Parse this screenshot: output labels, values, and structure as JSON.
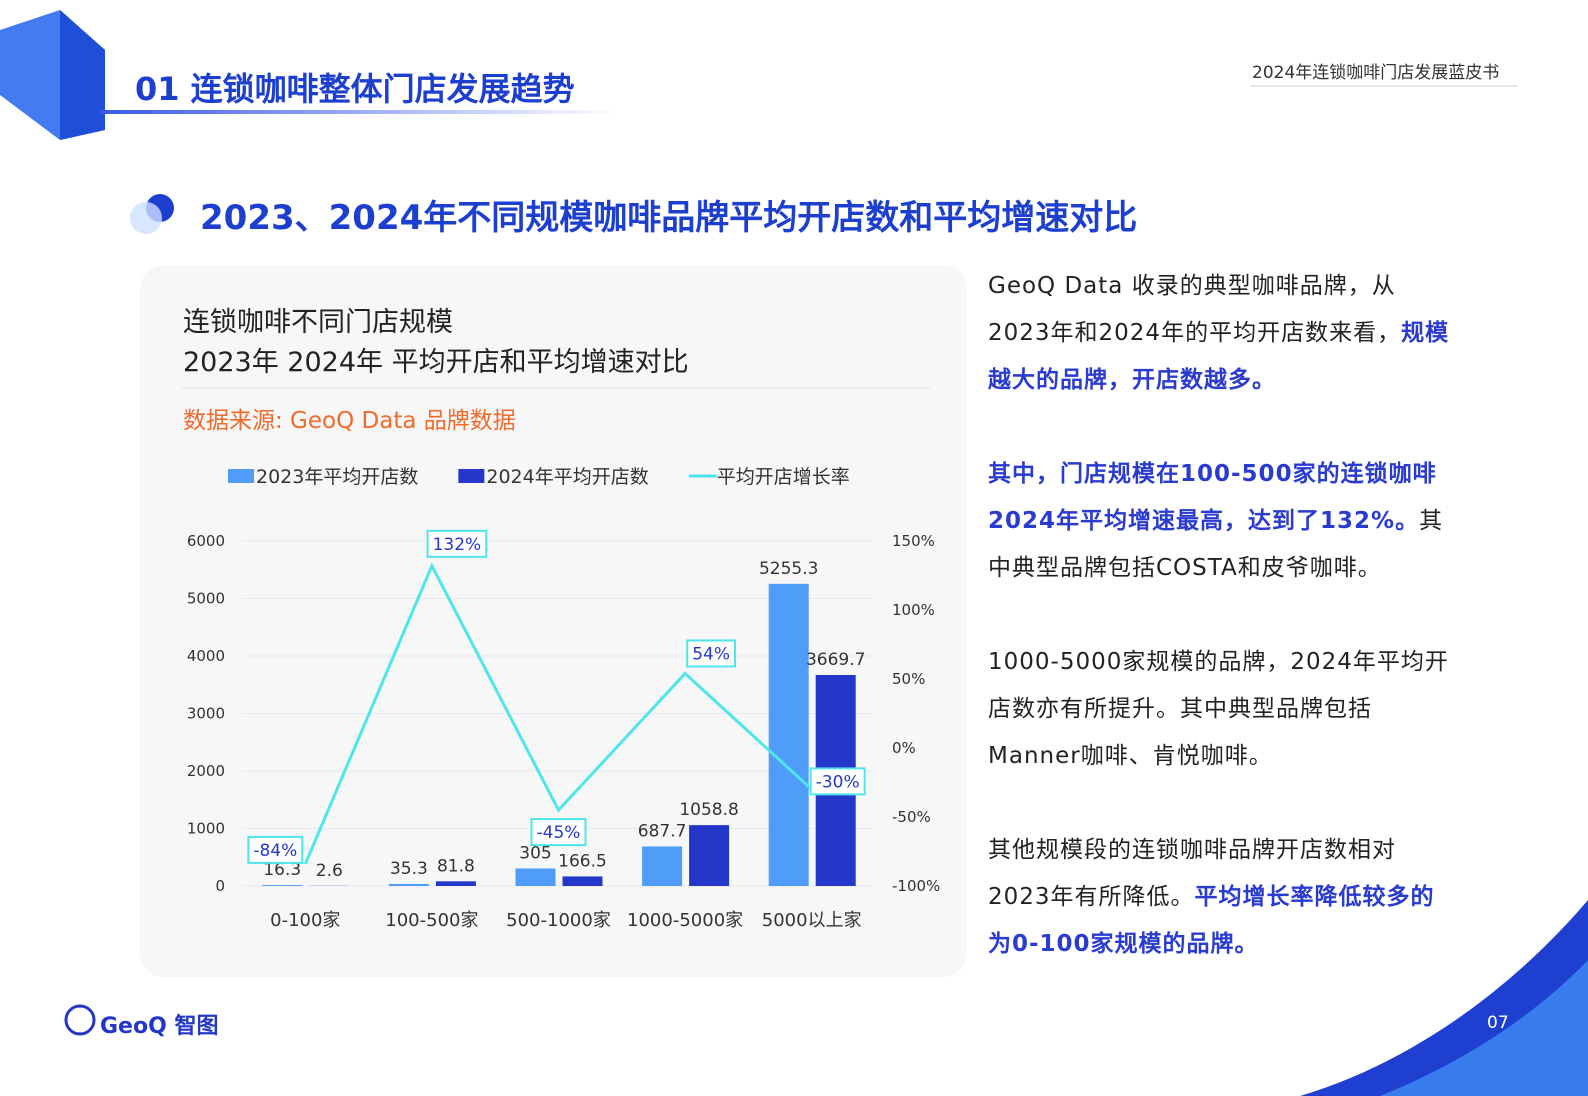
{
  "header": {
    "title": "01 连锁咖啡整体门店发展趋势",
    "report": "2024年连锁咖啡门店发展蓝皮书"
  },
  "section_title": "2023、2024年不同规模咖啡品牌平均开店数和平均增速对比",
  "chart_data": {
    "type": "bar",
    "title_lines": [
      "连锁咖啡不同门店规模",
      "2023年 2024年 平均开店和平均增速对比"
    ],
    "source": "数据来源: GeoQ Data 品牌数据",
    "categories": [
      "0-100家",
      "100-500家",
      "500-1000家",
      "1000-5000家",
      "5000以上家"
    ],
    "series": [
      {
        "name": "2023年平均开店数",
        "color": "#4f9cf9",
        "values": [
          16.3,
          35.3,
          305,
          687.7,
          5255.3
        ]
      },
      {
        "name": "2024年平均开店数",
        "color": "#2338c8",
        "values": [
          2.6,
          81.8,
          166.5,
          1058.8,
          3669.7
        ]
      },
      {
        "name": "平均开店增长率",
        "color": "#4ee6ea",
        "type": "line",
        "axis": "y2",
        "values": [
          -84,
          132,
          -45,
          54,
          -30
        ],
        "value_labels": [
          "-84%",
          "132%",
          "-45%",
          "54%",
          "-30%"
        ]
      }
    ],
    "ylim": [
      0,
      6000
    ],
    "yticks": [
      0,
      1000,
      2000,
      3000,
      4000,
      5000,
      6000
    ],
    "y2lim": [
      -100,
      150
    ],
    "y2ticks": [
      {
        "value": -100,
        "label": "-100%"
      },
      {
        "value": -50,
        "label": "-50%"
      },
      {
        "value": 0,
        "label": "0%"
      },
      {
        "value": 50,
        "label": "50%"
      },
      {
        "value": 100,
        "label": "100%"
      },
      {
        "value": 150,
        "label": "150%"
      }
    ],
    "grid": true,
    "legend": "top"
  },
  "paragraphs": [
    [
      {
        "text": "GeoQ Data 收录的典型咖啡品牌，从2023年和2024年的平均开店数来看，",
        "highlight": false
      },
      {
        "text": "规模越大的品牌，开店数越多。",
        "highlight": true
      }
    ],
    [
      {
        "text": "其中，门店规模在100-500家的连锁咖啡2024年平均增速最高，达到了132%。",
        "highlight": true
      },
      {
        "text": "其中典型品牌包括COSTA和皮爷咖啡。",
        "highlight": false
      }
    ],
    [
      {
        "text": "1000-5000家规模的品牌，2024年平均开店数亦有所提升。其中典型品牌包括Manner咖啡、肯悦咖啡。",
        "highlight": false
      }
    ],
    [
      {
        "text": "其他规模段的连锁咖啡品牌开店数相对2023年有所降低。",
        "highlight": false
      },
      {
        "text": "平均增长率降低较多的为0-100家规模的品牌。",
        "highlight": true
      }
    ]
  ],
  "footer": {
    "logo": "GeoQ 智图",
    "page": "07"
  }
}
